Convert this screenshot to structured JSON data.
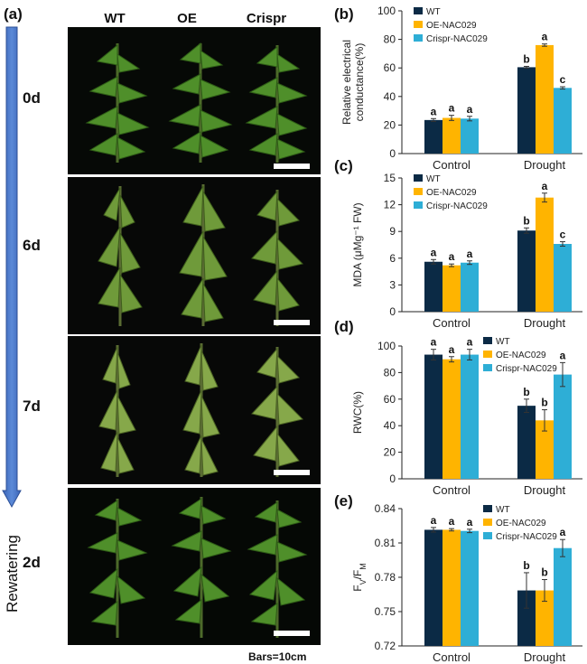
{
  "panel_a": {
    "label": "(a)",
    "columns": [
      "WT",
      "OE",
      "Crispr"
    ],
    "rows": [
      "0d",
      "6d",
      "7d",
      "2d"
    ],
    "rewatering_label": "Rewatering",
    "scale_note": "Bars=10cm",
    "arrow_color": "#4472c4"
  },
  "colors": {
    "WT": "#0b2a45",
    "OE": "#ffb400",
    "Crispr": "#2eaed6"
  },
  "chart_data": [
    {
      "panel": "(b)",
      "type": "bar",
      "categories": [
        "Control",
        "Drought"
      ],
      "ylabel_lines": [
        "Relative electrical",
        "conductance(%)"
      ],
      "ylim": [
        0,
        100
      ],
      "ticks": [
        "0",
        "20",
        "40",
        "60",
        "80",
        "100"
      ],
      "legend": "top-left",
      "series": [
        {
          "name": "WT",
          "values": [
            23.5,
            60.5
          ],
          "errors": [
            1.0,
            0.6
          ],
          "letters": [
            "a",
            "b"
          ]
        },
        {
          "name": "OE-NAC029",
          "values": [
            25,
            76
          ],
          "errors": [
            1.8,
            0.8
          ],
          "letters": [
            "a",
            "a"
          ]
        },
        {
          "name": "Crispr-NAC029",
          "values": [
            24.5,
            46
          ],
          "errors": [
            1.6,
            0.8
          ],
          "letters": [
            "a",
            "c"
          ]
        }
      ]
    },
    {
      "panel": "(c)",
      "type": "bar",
      "categories": [
        "Control",
        "Drought"
      ],
      "ylabel_lines": [
        "MDA (μMg⁻¹ FW)"
      ],
      "ylim": [
        0,
        15
      ],
      "ticks": [
        "0",
        "3",
        "6",
        "9",
        "12",
        "15"
      ],
      "legend": "top-left",
      "series": [
        {
          "name": "WT",
          "values": [
            5.6,
            9.1
          ],
          "errors": [
            0.25,
            0.3
          ],
          "letters": [
            "a",
            "b"
          ]
        },
        {
          "name": "OE-NAC029",
          "values": [
            5.2,
            12.8
          ],
          "errors": [
            0.15,
            0.5
          ],
          "letters": [
            "a",
            "a"
          ]
        },
        {
          "name": "Crispr-NAC029",
          "values": [
            5.5,
            7.6
          ],
          "errors": [
            0.2,
            0.25
          ],
          "letters": [
            "a",
            "c"
          ]
        }
      ]
    },
    {
      "panel": "(d)",
      "type": "bar",
      "categories": [
        "Control",
        "Drought"
      ],
      "ylabel_lines": [
        "RWC(%)"
      ],
      "ylim": [
        0,
        100
      ],
      "ticks": [
        "0",
        "20",
        "40",
        "60",
        "80",
        "100"
      ],
      "legend": "top-right",
      "series": [
        {
          "name": "WT",
          "values": [
            93.5,
            55
          ],
          "errors": [
            4,
            5
          ],
          "letters": [
            "a",
            "b"
          ]
        },
        {
          "name": "OE-NAC029",
          "values": [
            90,
            44
          ],
          "errors": [
            2,
            8
          ],
          "letters": [
            "a",
            "b"
          ]
        },
        {
          "name": "Crispr-NAC029",
          "values": [
            93.5,
            78.5
          ],
          "errors": [
            4,
            9
          ],
          "letters": [
            "a",
            "a"
          ]
        }
      ]
    },
    {
      "panel": "(e)",
      "type": "bar",
      "categories": [
        "Control",
        "Drought"
      ],
      "ylabel_lines": [
        "FV/FM"
      ],
      "ylim": [
        0.72,
        0.84
      ],
      "ticks": [
        "0.72",
        "0.75",
        "0.78",
        "0.81",
        "0.84"
      ],
      "legend": "top-right",
      "series": [
        {
          "name": "WT",
          "values": [
            0.8215,
            0.7685
          ],
          "errors": [
            0.002,
            0.0155
          ],
          "letters": [
            "a",
            "b"
          ]
        },
        {
          "name": "OE-NAC029",
          "values": [
            0.8215,
            0.7685
          ],
          "errors": [
            0.001,
            0.0095
          ],
          "letters": [
            "a",
            "b"
          ]
        },
        {
          "name": "Crispr-NAC029",
          "values": [
            0.8205,
            0.8055
          ],
          "errors": [
            0.0015,
            0.0075
          ],
          "letters": [
            "a",
            "a"
          ]
        }
      ]
    }
  ]
}
